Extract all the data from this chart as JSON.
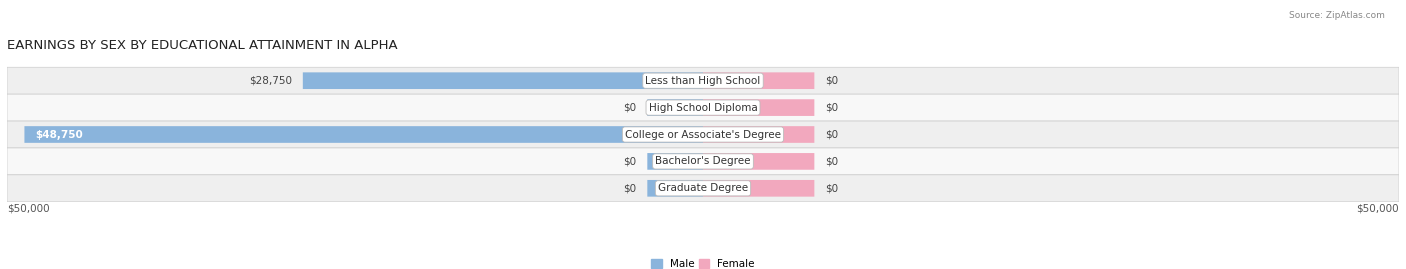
{
  "title": "EARNINGS BY SEX BY EDUCATIONAL ATTAINMENT IN ALPHA",
  "source": "Source: ZipAtlas.com",
  "categories": [
    "Less than High School",
    "High School Diploma",
    "College or Associate's Degree",
    "Bachelor's Degree",
    "Graduate Degree"
  ],
  "male_values": [
    28750,
    0,
    48750,
    0,
    0
  ],
  "female_values": [
    0,
    0,
    0,
    0,
    0
  ],
  "male_color": "#8ab4dc",
  "female_color": "#f2a8be",
  "row_colors": [
    "#efefef",
    "#f8f8f8",
    "#efefef",
    "#f8f8f8",
    "#efefef"
  ],
  "axis_max": 50000,
  "stub_size": 4000,
  "female_stub_size": 8000,
  "legend_male": "Male",
  "legend_female": "Female",
  "xlabel_left": "$50,000",
  "xlabel_right": "$50,000",
  "title_fontsize": 9.5,
  "label_fontsize": 7.5,
  "category_fontsize": 7.5,
  "source_fontsize": 6.5
}
